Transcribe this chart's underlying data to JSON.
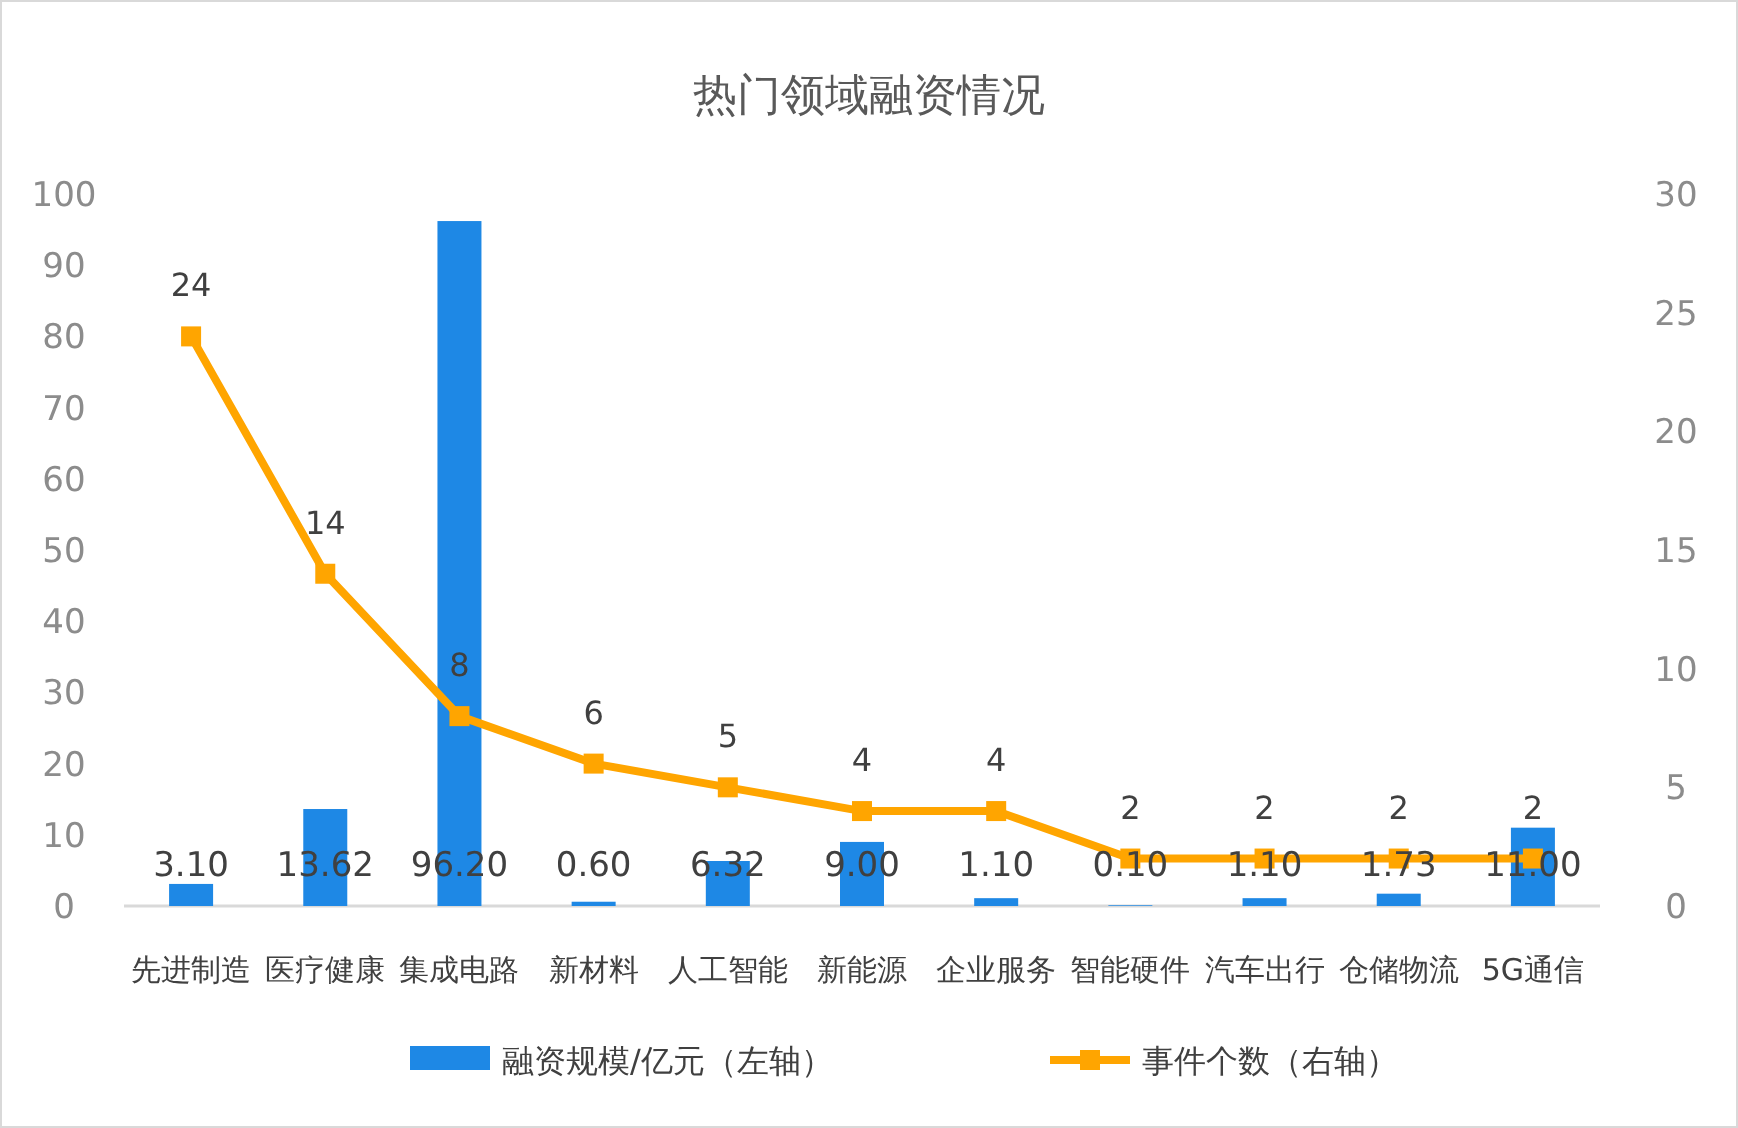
{
  "chart_data": {
    "type": "bar",
    "title": "热门领域融资情况",
    "categories": [
      "先进制造",
      "医疗健康",
      "集成电路",
      "新材料",
      "人工智能",
      "新能源",
      "企业服务",
      "智能硬件",
      "汽车出行",
      "仓储物流",
      "5G通信"
    ],
    "series": [
      {
        "name": "融资规模/亿元（左轴）",
        "color": "#1e88e5",
        "values": [
          3.1,
          13.62,
          96.2,
          0.6,
          6.32,
          9.0,
          1.1,
          0.1,
          1.1,
          1.73,
          11.0
        ],
        "value_labels": [
          "3.10",
          "13.62",
          "96.20",
          "0.60",
          "6.32",
          "9.00",
          "1.10",
          "0.10",
          "1.10",
          "1.73",
          "11.00"
        ]
      },
      {
        "name": "事件个数（右轴）",
        "type": "line",
        "axis": "y2",
        "color": "#ffa500",
        "marker": "square",
        "values": [
          24,
          14,
          8,
          6,
          5,
          4,
          4,
          2,
          2,
          2,
          2
        ],
        "value_labels": [
          "24",
          "14",
          "8",
          "6",
          "5",
          "4",
          "4",
          "2",
          "2",
          "2",
          "2"
        ]
      }
    ],
    "ylim": [
      0,
      100
    ],
    "yticks": [
      0,
      10,
      20,
      30,
      40,
      50,
      60,
      70,
      80,
      90,
      100
    ],
    "y2lim": [
      0,
      30
    ],
    "y2ticks": [
      0,
      5,
      10,
      15,
      20,
      25,
      30
    ],
    "grid": false,
    "legend": "bottom"
  }
}
